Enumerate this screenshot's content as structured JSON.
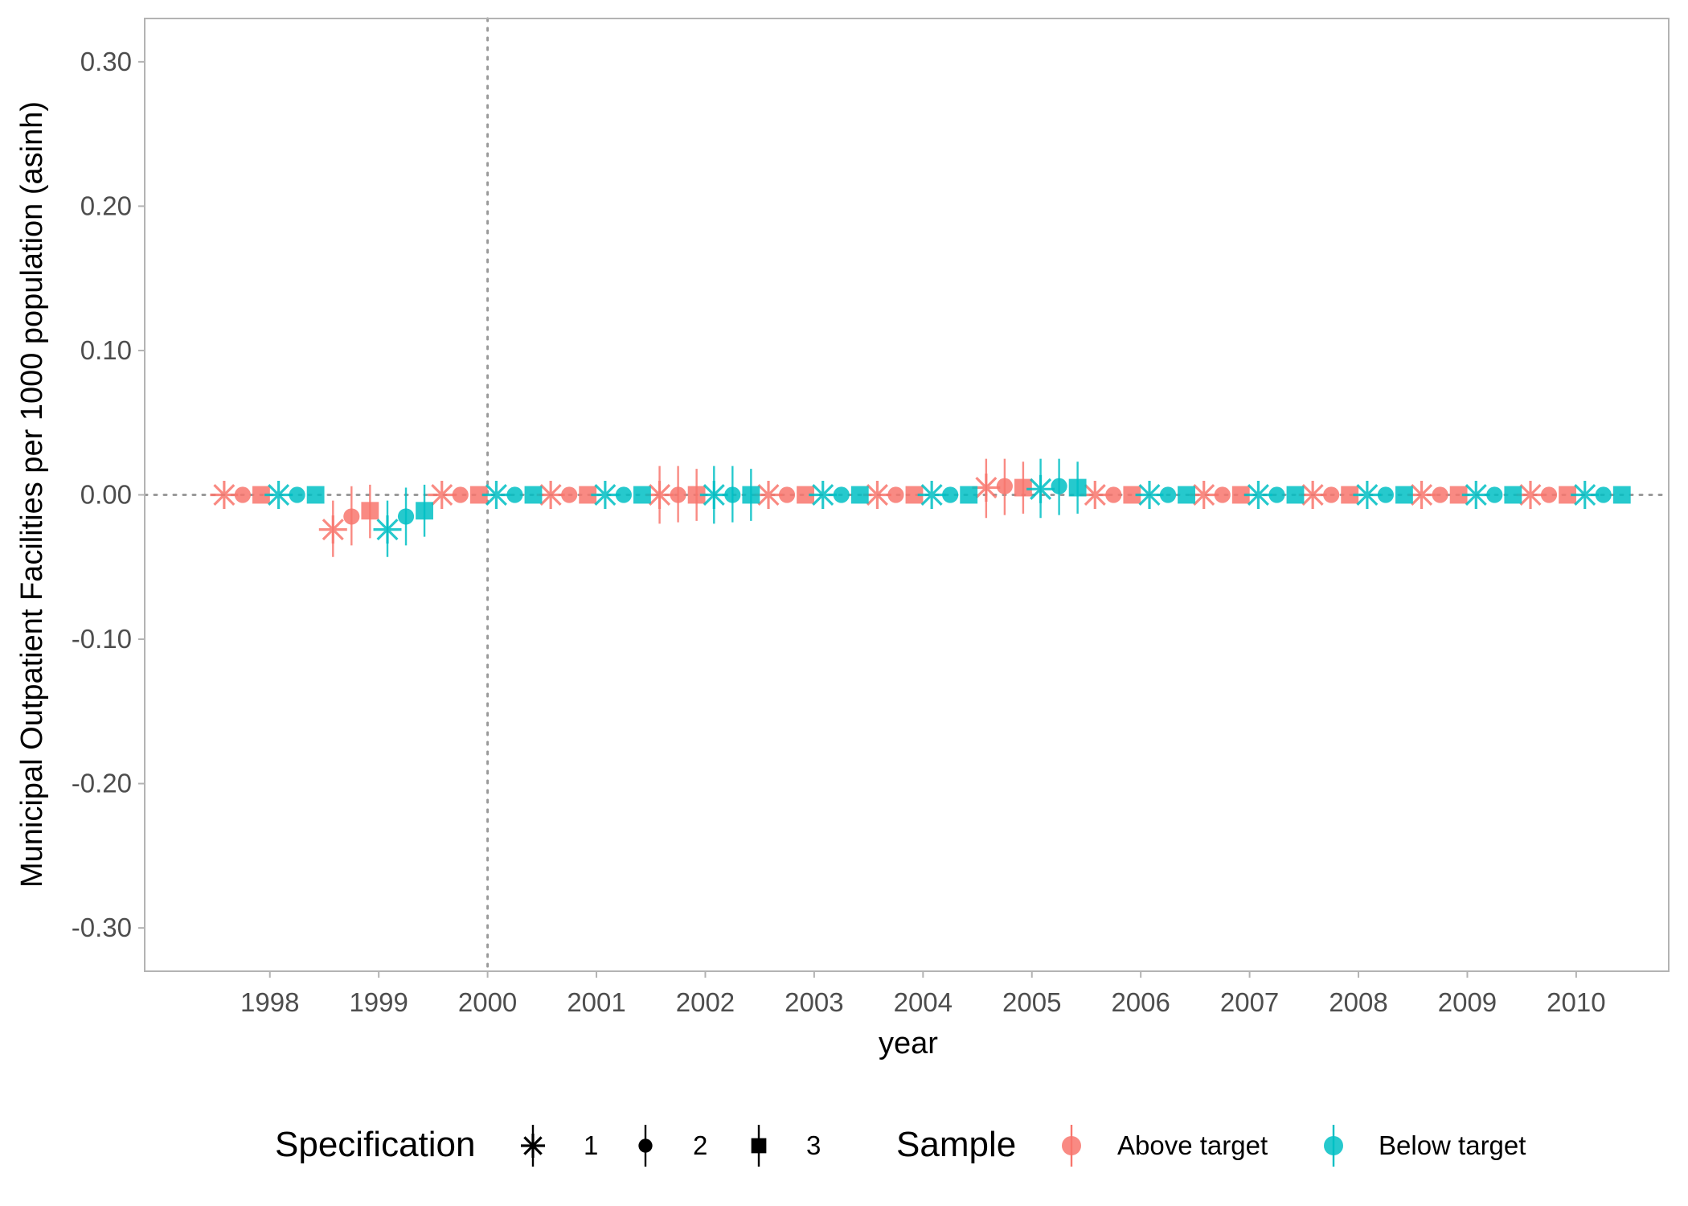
{
  "chart_data": {
    "type": "scatter",
    "title": "",
    "xlabel": "year",
    "ylabel": "Municipal Outpatient Facilities per 1000 population (asinh)",
    "x_range": [
      1996.85,
      2010.85
    ],
    "ylim": [
      -0.33,
      0.33
    ],
    "y_ticks": [
      -0.3,
      -0.2,
      -0.1,
      0.0,
      0.1,
      0.2,
      0.3
    ],
    "y_tick_labels": [
      "-0.30",
      "-0.20",
      "-0.10",
      "0.00",
      "0.10",
      "0.20",
      "0.30"
    ],
    "x_ticks": [
      1998,
      1999,
      2000,
      2001,
      2002,
      2003,
      2004,
      2005,
      2006,
      2007,
      2008,
      2009,
      2010
    ],
    "x_tick_labels": [
      "1998",
      "1999",
      "2000",
      "2001",
      "2002",
      "2003",
      "2004",
      "2005",
      "2006",
      "2007",
      "2008",
      "2009",
      "2010"
    ],
    "reference_lines": {
      "vertical_x": 2000,
      "horizontal_y": 0.0,
      "style": "dotted"
    },
    "grid": false,
    "legend_position": "bottom",
    "legend": {
      "specification": {
        "title": "Specification",
        "items": [
          "1",
          "2",
          "3"
        ],
        "shapes": [
          "asterisk",
          "circle",
          "square"
        ]
      },
      "sample": {
        "title": "Sample",
        "items": [
          "Above target",
          "Below target"
        ]
      }
    },
    "colors": {
      "Above target": "#F8766D",
      "Below target": "#00BFC4"
    },
    "dodge_offsets": {
      "Above target": {
        "1": -0.42,
        "2": -0.25,
        "3": -0.08
      },
      "Below target": {
        "1": 0.08,
        "2": 0.25,
        "3": 0.42
      }
    },
    "series": [
      {
        "sample": "Above target",
        "specification": "1",
        "points": [
          {
            "year": 1998,
            "y": 0.0,
            "lo": 0.0,
            "hi": 0.0
          },
          {
            "year": 1999,
            "y": -0.024,
            "lo": -0.043,
            "hi": -0.004
          },
          {
            "year": 2000,
            "y": 0.0,
            "lo": 0.0,
            "hi": 0.0
          },
          {
            "year": 2001,
            "y": 0.0,
            "lo": 0.0,
            "hi": 0.0
          },
          {
            "year": 2002,
            "y": 0.0,
            "lo": -0.02,
            "hi": 0.02
          },
          {
            "year": 2003,
            "y": 0.0,
            "lo": 0.0,
            "hi": 0.0
          },
          {
            "year": 2004,
            "y": 0.0,
            "lo": 0.0,
            "hi": 0.0
          },
          {
            "year": 2005,
            "y": 0.005,
            "lo": -0.016,
            "hi": 0.025
          },
          {
            "year": 2006,
            "y": 0.0,
            "lo": 0.0,
            "hi": 0.0
          },
          {
            "year": 2007,
            "y": 0.0,
            "lo": 0.0,
            "hi": 0.0
          },
          {
            "year": 2008,
            "y": 0.0,
            "lo": 0.0,
            "hi": 0.0
          },
          {
            "year": 2009,
            "y": 0.0,
            "lo": 0.0,
            "hi": 0.0
          },
          {
            "year": 2010,
            "y": 0.0,
            "lo": 0.0,
            "hi": 0.0
          }
        ]
      },
      {
        "sample": "Above target",
        "specification": "2",
        "points": [
          {
            "year": 1998,
            "y": 0.0,
            "lo": 0.0,
            "hi": 0.0
          },
          {
            "year": 1999,
            "y": -0.015,
            "lo": -0.035,
            "hi": 0.006
          },
          {
            "year": 2000,
            "y": 0.0,
            "lo": 0.0,
            "hi": 0.0
          },
          {
            "year": 2001,
            "y": 0.0,
            "lo": 0.0,
            "hi": 0.0
          },
          {
            "year": 2002,
            "y": 0.0,
            "lo": -0.019,
            "hi": 0.02
          },
          {
            "year": 2003,
            "y": 0.0,
            "lo": 0.0,
            "hi": 0.0
          },
          {
            "year": 2004,
            "y": 0.0,
            "lo": 0.0,
            "hi": 0.0
          },
          {
            "year": 2005,
            "y": 0.006,
            "lo": -0.014,
            "hi": 0.025
          },
          {
            "year": 2006,
            "y": 0.0,
            "lo": 0.0,
            "hi": 0.0
          },
          {
            "year": 2007,
            "y": 0.0,
            "lo": 0.0,
            "hi": 0.0
          },
          {
            "year": 2008,
            "y": 0.0,
            "lo": 0.0,
            "hi": 0.0
          },
          {
            "year": 2009,
            "y": 0.0,
            "lo": 0.0,
            "hi": 0.0
          },
          {
            "year": 2010,
            "y": 0.0,
            "lo": 0.0,
            "hi": 0.0
          }
        ]
      },
      {
        "sample": "Above target",
        "specification": "3",
        "points": [
          {
            "year": 1998,
            "y": 0.0,
            "lo": 0.0,
            "hi": 0.0
          },
          {
            "year": 1999,
            "y": -0.011,
            "lo": -0.03,
            "hi": 0.007
          },
          {
            "year": 2000,
            "y": 0.0,
            "lo": 0.0,
            "hi": 0.0
          },
          {
            "year": 2001,
            "y": 0.0,
            "lo": 0.0,
            "hi": 0.0
          },
          {
            "year": 2002,
            "y": 0.0,
            "lo": -0.018,
            "hi": 0.018
          },
          {
            "year": 2003,
            "y": 0.0,
            "lo": 0.0,
            "hi": 0.0
          },
          {
            "year": 2004,
            "y": 0.0,
            "lo": 0.0,
            "hi": 0.0
          },
          {
            "year": 2005,
            "y": 0.005,
            "lo": -0.013,
            "hi": 0.023
          },
          {
            "year": 2006,
            "y": 0.0,
            "lo": 0.0,
            "hi": 0.0
          },
          {
            "year": 2007,
            "y": 0.0,
            "lo": 0.0,
            "hi": 0.0
          },
          {
            "year": 2008,
            "y": 0.0,
            "lo": 0.0,
            "hi": 0.0
          },
          {
            "year": 2009,
            "y": 0.0,
            "lo": 0.0,
            "hi": 0.0
          },
          {
            "year": 2010,
            "y": 0.0,
            "lo": 0.0,
            "hi": 0.0
          }
        ]
      },
      {
        "sample": "Below target",
        "specification": "1",
        "points": [
          {
            "year": 1998,
            "y": 0.0,
            "lo": 0.0,
            "hi": 0.0
          },
          {
            "year": 1999,
            "y": -0.024,
            "lo": -0.043,
            "hi": -0.004
          },
          {
            "year": 2000,
            "y": 0.0,
            "lo": 0.0,
            "hi": 0.0
          },
          {
            "year": 2001,
            "y": 0.0,
            "lo": 0.0,
            "hi": 0.0
          },
          {
            "year": 2002,
            "y": 0.0,
            "lo": -0.02,
            "hi": 0.02
          },
          {
            "year": 2003,
            "y": 0.0,
            "lo": 0.0,
            "hi": 0.0
          },
          {
            "year": 2004,
            "y": 0.0,
            "lo": 0.0,
            "hi": 0.0
          },
          {
            "year": 2005,
            "y": 0.004,
            "lo": -0.016,
            "hi": 0.025
          },
          {
            "year": 2006,
            "y": 0.0,
            "lo": 0.0,
            "hi": 0.0
          },
          {
            "year": 2007,
            "y": 0.0,
            "lo": 0.0,
            "hi": 0.0
          },
          {
            "year": 2008,
            "y": 0.0,
            "lo": 0.0,
            "hi": 0.0
          },
          {
            "year": 2009,
            "y": 0.0,
            "lo": 0.0,
            "hi": 0.0
          },
          {
            "year": 2010,
            "y": 0.0,
            "lo": 0.0,
            "hi": 0.0
          }
        ]
      },
      {
        "sample": "Below target",
        "specification": "2",
        "points": [
          {
            "year": 1998,
            "y": 0.0,
            "lo": 0.0,
            "hi": 0.0
          },
          {
            "year": 1999,
            "y": -0.015,
            "lo": -0.035,
            "hi": 0.005
          },
          {
            "year": 2000,
            "y": 0.0,
            "lo": 0.0,
            "hi": 0.0
          },
          {
            "year": 2001,
            "y": 0.0,
            "lo": 0.0,
            "hi": 0.0
          },
          {
            "year": 2002,
            "y": 0.0,
            "lo": -0.019,
            "hi": 0.02
          },
          {
            "year": 2003,
            "y": 0.0,
            "lo": 0.0,
            "hi": 0.0
          },
          {
            "year": 2004,
            "y": 0.0,
            "lo": 0.0,
            "hi": 0.0
          },
          {
            "year": 2005,
            "y": 0.006,
            "lo": -0.014,
            "hi": 0.025
          },
          {
            "year": 2006,
            "y": 0.0,
            "lo": 0.0,
            "hi": 0.0
          },
          {
            "year": 2007,
            "y": 0.0,
            "lo": 0.0,
            "hi": 0.0
          },
          {
            "year": 2008,
            "y": 0.0,
            "lo": 0.0,
            "hi": 0.0
          },
          {
            "year": 2009,
            "y": 0.0,
            "lo": 0.0,
            "hi": 0.0
          },
          {
            "year": 2010,
            "y": 0.0,
            "lo": 0.0,
            "hi": 0.0
          }
        ]
      },
      {
        "sample": "Below target",
        "specification": "3",
        "points": [
          {
            "year": 1998,
            "y": 0.0,
            "lo": 0.0,
            "hi": 0.0
          },
          {
            "year": 1999,
            "y": -0.011,
            "lo": -0.029,
            "hi": 0.007
          },
          {
            "year": 2000,
            "y": 0.0,
            "lo": 0.0,
            "hi": 0.0
          },
          {
            "year": 2001,
            "y": 0.0,
            "lo": 0.0,
            "hi": 0.0
          },
          {
            "year": 2002,
            "y": 0.0,
            "lo": -0.018,
            "hi": 0.018
          },
          {
            "year": 2003,
            "y": 0.0,
            "lo": 0.0,
            "hi": 0.0
          },
          {
            "year": 2004,
            "y": 0.0,
            "lo": 0.0,
            "hi": 0.0
          },
          {
            "year": 2005,
            "y": 0.005,
            "lo": -0.013,
            "hi": 0.023
          },
          {
            "year": 2006,
            "y": 0.0,
            "lo": 0.0,
            "hi": 0.0
          },
          {
            "year": 2007,
            "y": 0.0,
            "lo": 0.0,
            "hi": 0.0
          },
          {
            "year": 2008,
            "y": 0.0,
            "lo": 0.0,
            "hi": 0.0
          },
          {
            "year": 2009,
            "y": 0.0,
            "lo": 0.0,
            "hi": 0.0
          },
          {
            "year": 2010,
            "y": 0.0,
            "lo": 0.0,
            "hi": 0.0
          }
        ]
      }
    ]
  }
}
